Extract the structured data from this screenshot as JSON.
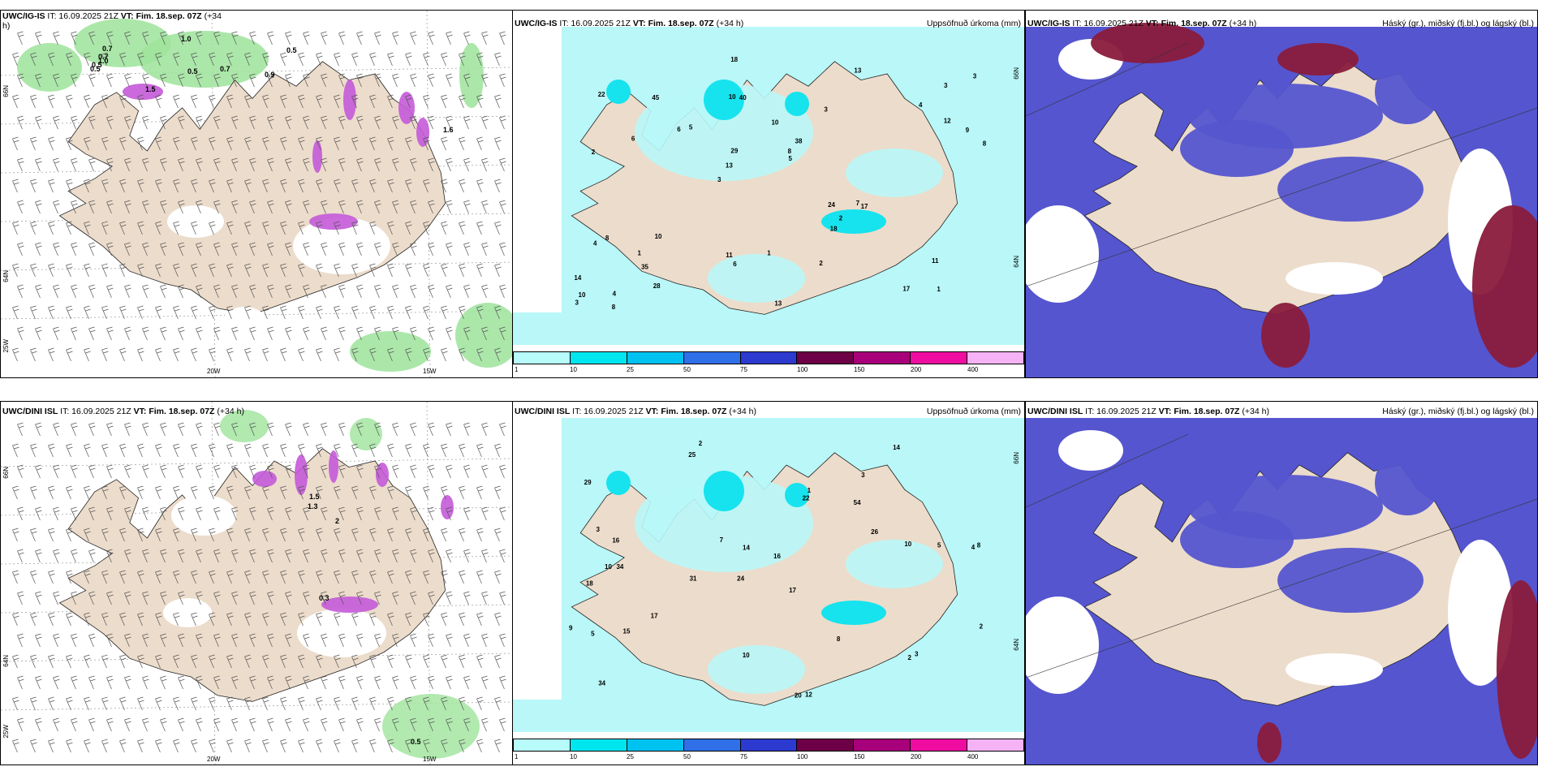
{
  "panels": {
    "p1": {
      "model": "UWC/IG-IS",
      "it": "IT: 16.09.2025 21Z",
      "vt": "VT: Fim. 18.sep. 07Z",
      "lead": "(+34",
      "lead2": "h)",
      "right": ""
    },
    "p2": {
      "model": "UWC/IG-IS",
      "it": "IT: 16.09.2025 21Z",
      "vt": "VT: Fim. 18.sep. 07Z",
      "lead": "(+34 h)",
      "right": "Uppsöfnuð úrkoma (mm)"
    },
    "p3": {
      "model": "UWC/IG-IS",
      "it": "IT: 16.09.2025 21Z",
      "vt": "VT: Fim. 18.sep. 07Z",
      "lead": "(+34 h)",
      "right": "Háský (gr.), miðský (fj.bl.) og lágský (bl.)"
    },
    "p4": {
      "model": "UWC/DINI ISL",
      "it": "IT: 16.09.2025 21Z",
      "vt": "VT: Fim. 18.sep. 07Z",
      "lead": "(+34 h)",
      "right": ""
    },
    "p5": {
      "model": "UWC/DINI ISL",
      "it": "IT: 16.09.2025 21Z",
      "vt": "VT: Fim. 18.sep. 07Z",
      "lead": "(+34 h)",
      "right": "Uppsöfnuð úrkoma (mm)"
    },
    "p6": {
      "model": "UWC/DINI ISL",
      "it": "IT: 16.09.2025 21Z",
      "vt": "VT: Fim. 18.sep. 07Z",
      "lead": "(+34 h)",
      "right": "Háský (gr.), miðský (fj.bl.) og lágský (bl.)"
    }
  },
  "axis_labels": {
    "lat66": "66N",
    "lat64": "64N",
    "lon25": "25W",
    "lon20": "20W",
    "lon15": "15W"
  },
  "colorbar": {
    "colors": [
      "#b8fbfb",
      "#00e6ee",
      "#00c2f0",
      "#2f6fe8",
      "#2d3ad0",
      "#6e0047",
      "#a8007a",
      "#ee0da0",
      "#f5b3f5"
    ],
    "ticks": [
      "1",
      "10",
      "25",
      "50",
      "75",
      "100",
      "150",
      "200",
      "400"
    ]
  },
  "map1_labels": [
    "1.0",
    "0.7",
    "0.5",
    "1.5",
    "0.5",
    "0.7",
    "0.9",
    "0.5",
    "1.6",
    "0.7",
    "1.0",
    "0.5"
  ],
  "map4_labels": [
    "1.5",
    "1.3",
    "2",
    "0.3",
    "0.5"
  ],
  "map2_values": [
    "1",
    "2",
    "3",
    "3",
    "3",
    "4",
    "10",
    "10",
    "8",
    "5",
    "14",
    "35",
    "40",
    "38",
    "17",
    "22",
    "18",
    "8",
    "24",
    "12",
    "13",
    "11",
    "29",
    "45",
    "13",
    "10",
    "17",
    "11",
    "7",
    "13",
    "6",
    "6",
    "18",
    "28",
    "9",
    "8",
    "10",
    "6",
    "5",
    "4",
    "4",
    "3",
    "2",
    "2",
    "1",
    "8",
    "3",
    "1"
  ],
  "map5_values": [
    "2",
    "3",
    "4",
    "24",
    "17",
    "34",
    "29",
    "54",
    "18",
    "22",
    "16",
    "34",
    "25",
    "31",
    "20",
    "12",
    "10",
    "14",
    "26",
    "17",
    "16",
    "10",
    "8",
    "5",
    "9",
    "3",
    "14",
    "10",
    "3",
    "5",
    "2",
    "1",
    "15",
    "7",
    "8",
    "2"
  ],
  "colors": {
    "land": "#ecdccb",
    "ocean_cyan": "#b9f7f8",
    "bright_cyan": "#16e3ee",
    "green": "#9de39b",
    "magenta": "#c45ad8",
    "blue": "#5555cf",
    "darkred": "#8a1b3c"
  }
}
